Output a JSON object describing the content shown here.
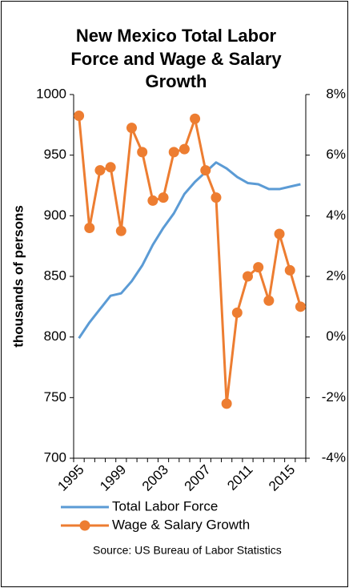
{
  "chart_data": {
    "type": "line",
    "title": [
      "New Mexico Total Labor",
      "Force and Wage & Salary",
      "Growth"
    ],
    "y_label": "thousands of persons",
    "source": "Source: US Bureau of Labor Statistics",
    "categories": [
      "1995",
      null,
      null,
      null,
      "1999",
      null,
      null,
      null,
      "2003",
      null,
      null,
      null,
      "2007",
      null,
      null,
      null,
      "2011",
      null,
      null,
      null,
      "2015",
      null
    ],
    "ylim": [
      700,
      1000
    ],
    "yticks": [
      700,
      750,
      800,
      850,
      900,
      950,
      1000
    ],
    "y2lim": [
      -4,
      8
    ],
    "y2ticks": [
      {
        "value": -4,
        "label": "-4%"
      },
      {
        "value": -2,
        "label": "-2%"
      },
      {
        "value": 0,
        "label": "0%"
      },
      {
        "value": 2,
        "label": "2%"
      },
      {
        "value": 4,
        "label": "4%"
      },
      {
        "value": 6,
        "label": "6%"
      },
      {
        "value": 8,
        "label": "8%"
      }
    ],
    "grid": false,
    "legend": "bottom",
    "series": [
      {
        "name": "Total Labor Force",
        "color": "#5b9bd5",
        "markers": false,
        "values": [
          799,
          812,
          823,
          834,
          836,
          846,
          859,
          876,
          890,
          902,
          918,
          928,
          936,
          944,
          939,
          932,
          927,
          926,
          922,
          922,
          924,
          926
        ]
      },
      {
        "name": "Wage & Salary Growth",
        "color": "#ed7d31",
        "markers": true,
        "axis": "y2",
        "values": [
          7.3,
          3.6,
          5.5,
          5.6,
          3.5,
          6.9,
          6.1,
          4.5,
          4.6,
          6.1,
          6.2,
          7.2,
          5.5,
          4.6,
          -2.2,
          0.8,
          2.0,
          2.3,
          1.2,
          3.4,
          2.2,
          1.0
        ]
      }
    ]
  }
}
